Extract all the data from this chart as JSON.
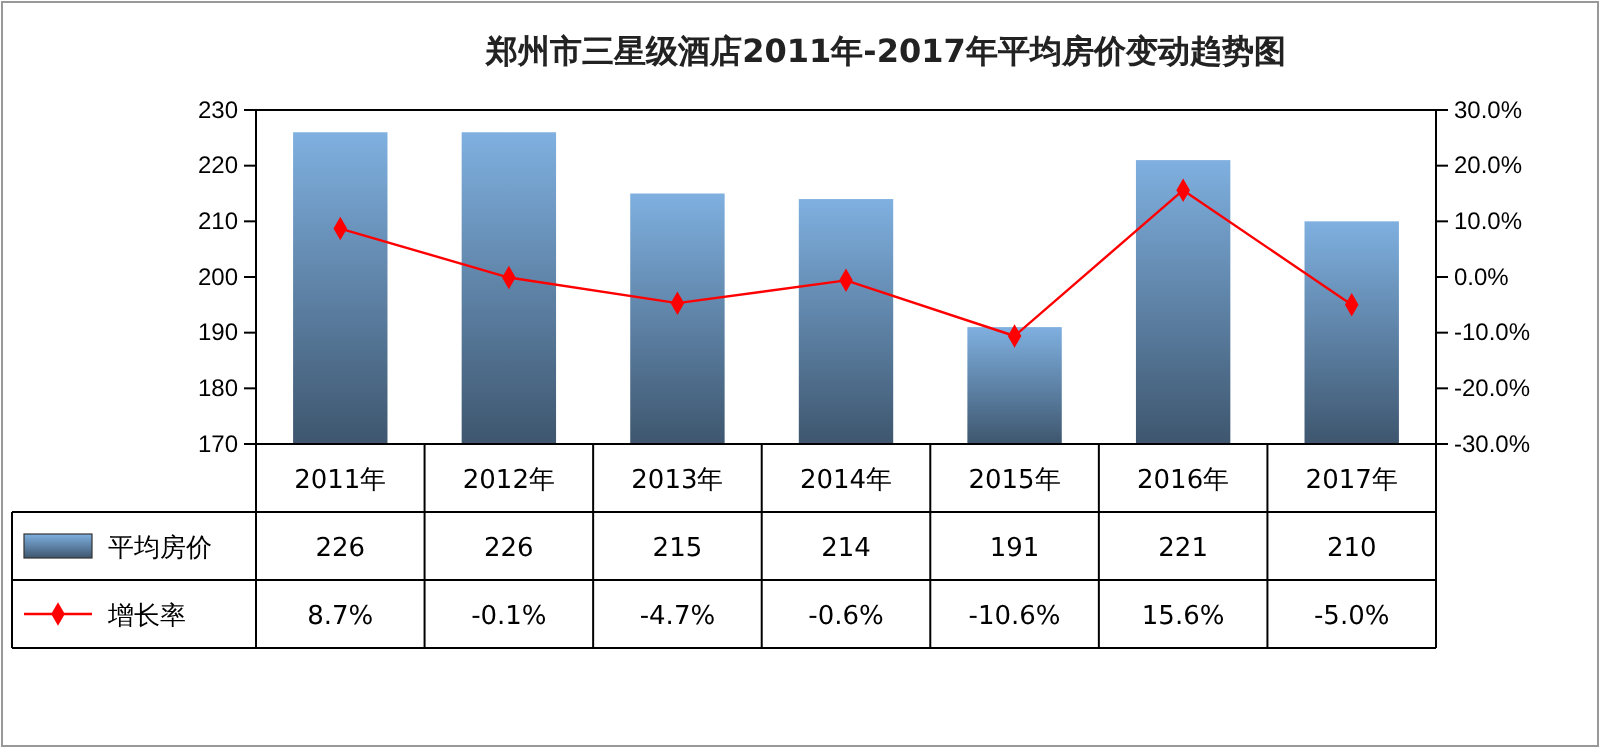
{
  "chart_data": {
    "type": "bar",
    "title": "郑州市三星级酒店2011年-2017年平均房价变动趋势图",
    "categories": [
      "2011年",
      "2012年",
      "2013年",
      "2014年",
      "2015年",
      "2016年",
      "2017年"
    ],
    "series": [
      {
        "name": "平均房价",
        "color": "#7fb0e0",
        "values": [
          226,
          226,
          215,
          214,
          191,
          221,
          210
        ],
        "value_labels": [
          "226",
          "226",
          "215",
          "214",
          "191",
          "221",
          "210"
        ]
      },
      {
        "name": "增长率",
        "type": "line",
        "axis": "y2",
        "color": "#ff0000",
        "values": [
          8.7,
          -0.1,
          -4.7,
          -0.6,
          -10.6,
          15.6,
          -5.0
        ],
        "value_labels": [
          "8.7%",
          "-0.1%",
          "-4.7%",
          "-0.6%",
          "-10.6%",
          "15.6%",
          "-5.0%"
        ]
      }
    ],
    "ylim": [
      170,
      230
    ],
    "yticks": [
      170,
      180,
      190,
      200,
      210,
      220,
      230
    ],
    "y2lim": [
      -30,
      30
    ],
    "y2ticks": [
      {
        "value": -30,
        "label": "-30.0%"
      },
      {
        "value": -20,
        "label": "-20.0%"
      },
      {
        "value": -10,
        "label": "-10.0%"
      },
      {
        "value": 0,
        "label": "0.0%"
      },
      {
        "value": 10,
        "label": "10.0%"
      },
      {
        "value": 20,
        "label": "20.0%"
      },
      {
        "value": 30,
        "label": "30.0%"
      }
    ],
    "marker": "diamond",
    "legend": "bottom"
  }
}
